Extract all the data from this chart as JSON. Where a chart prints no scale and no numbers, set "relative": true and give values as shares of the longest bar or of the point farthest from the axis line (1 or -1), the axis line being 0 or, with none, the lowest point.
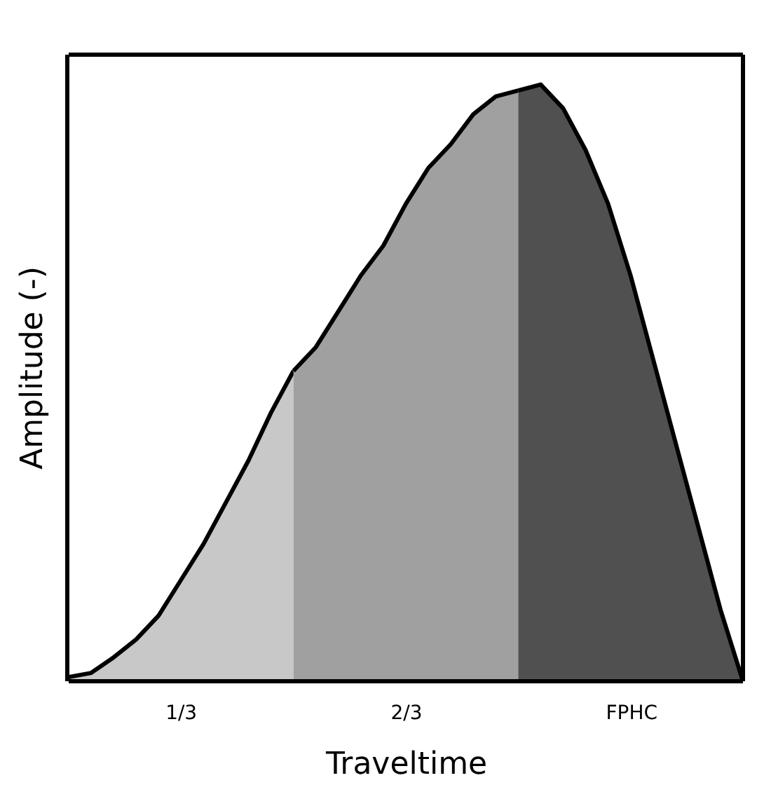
{
  "chart_data": {
    "type": "area",
    "relative": true,
    "xlabel": "Traveltime",
    "ylabel": "Amplitude (-)",
    "tick_labels": false,
    "categories": [
      null,
      null,
      null,
      null,
      null,
      null,
      null,
      null,
      null,
      null,
      null,
      null,
      null,
      null,
      null,
      null,
      null,
      null,
      null,
      null,
      null,
      null,
      null,
      null,
      null,
      null,
      null,
      null,
      null,
      null,
      null
    ],
    "series": [
      {
        "color": "#c8c8c8",
        "values": [
          0.007,
          0.014,
          0.04,
          0.07,
          0.11,
          0.17,
          0.23,
          0.3,
          0.37,
          0.45,
          0.52,
          null,
          null,
          null,
          null,
          null,
          null,
          null,
          null,
          null,
          null,
          null,
          null,
          null,
          null,
          null,
          null,
          null,
          null,
          null,
          null
        ]
      },
      {
        "color": "#a0a0a0",
        "values": [
          null,
          null,
          null,
          null,
          null,
          null,
          null,
          null,
          null,
          null,
          0.52,
          0.56,
          0.62,
          0.68,
          0.73,
          0.8,
          0.86,
          0.9,
          0.95,
          0.98,
          0.99,
          null,
          null,
          null,
          null,
          null,
          null,
          null,
          null,
          null,
          null
        ]
      },
      {
        "color": "#505050",
        "values": [
          null,
          null,
          null,
          null,
          null,
          null,
          null,
          null,
          null,
          null,
          null,
          null,
          null,
          null,
          null,
          null,
          null,
          null,
          null,
          null,
          0.99,
          1.0,
          0.96,
          0.89,
          0.8,
          0.68,
          0.54,
          0.4,
          0.26,
          0.12,
          0
        ]
      }
    ],
    "annotations": [
      "1/3",
      "2/3",
      "FPHC"
    ]
  }
}
